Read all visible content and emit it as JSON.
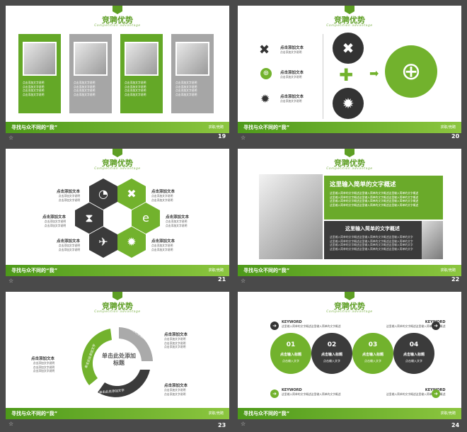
{
  "header": {
    "title": "竞聘优势",
    "subtitle": "Competition advantage"
  },
  "footer": {
    "text": "寻找与众不同的“我”",
    "right": "求职/竞聘"
  },
  "slide_numbers": [
    "19",
    "20",
    "21",
    "22",
    "23",
    "24"
  ],
  "slide19": {
    "caption_line": "点击添加文字说明"
  },
  "slide20": {
    "item_title": "点击添加文本",
    "item_desc": "点击添加文字说明"
  },
  "slide21": {
    "item_title": "点击添加文本",
    "item_desc": "点击添加文字说明"
  },
  "slide22": {
    "heading1": "这里输入简单的文字概述",
    "body1": "这里输入简单的文字概述这里输入简单的文字概述这里输入简单的文字概述",
    "heading2": "这里输入简单的文字概述",
    "body2": "这里输入简单的文字概述这里输入简单的文字概述这里输入简单的文字"
  },
  "slide23": {
    "center": "单击此处添加标题",
    "arrow_label": "单击此处添加文字",
    "item_title": "点击添加文本",
    "item_desc": "点击添加文字说明"
  },
  "slide24": {
    "keyword": "KEYWORD",
    "keyword_desc": "这里输入简单的文字概述这里输入简单的文字概述",
    "circles": [
      {
        "num": "01",
        "title": "点击输入标题",
        "desc": "点击输入文字"
      },
      {
        "num": "02",
        "title": "点击输入标题",
        "desc": "点击输入文字"
      },
      {
        "num": "03",
        "title": "点击输入标题",
        "desc": "点击输入文字"
      },
      {
        "num": "04",
        "title": "点击输入标题",
        "desc": "点击输入文字"
      }
    ]
  },
  "colors": {
    "green": "#5d9e23",
    "dark": "#3b3b3b",
    "gray": "#a6a6a6",
    "background": "#4a4a4a"
  },
  "icons": [
    "tools-icon",
    "globe-hands-icon",
    "gear-icon",
    "plus-icon",
    "arrow-right-icon",
    "stopwatch-icon",
    "hourglass-icon",
    "satellite-icon",
    "ie-icon",
    "star-icon"
  ]
}
